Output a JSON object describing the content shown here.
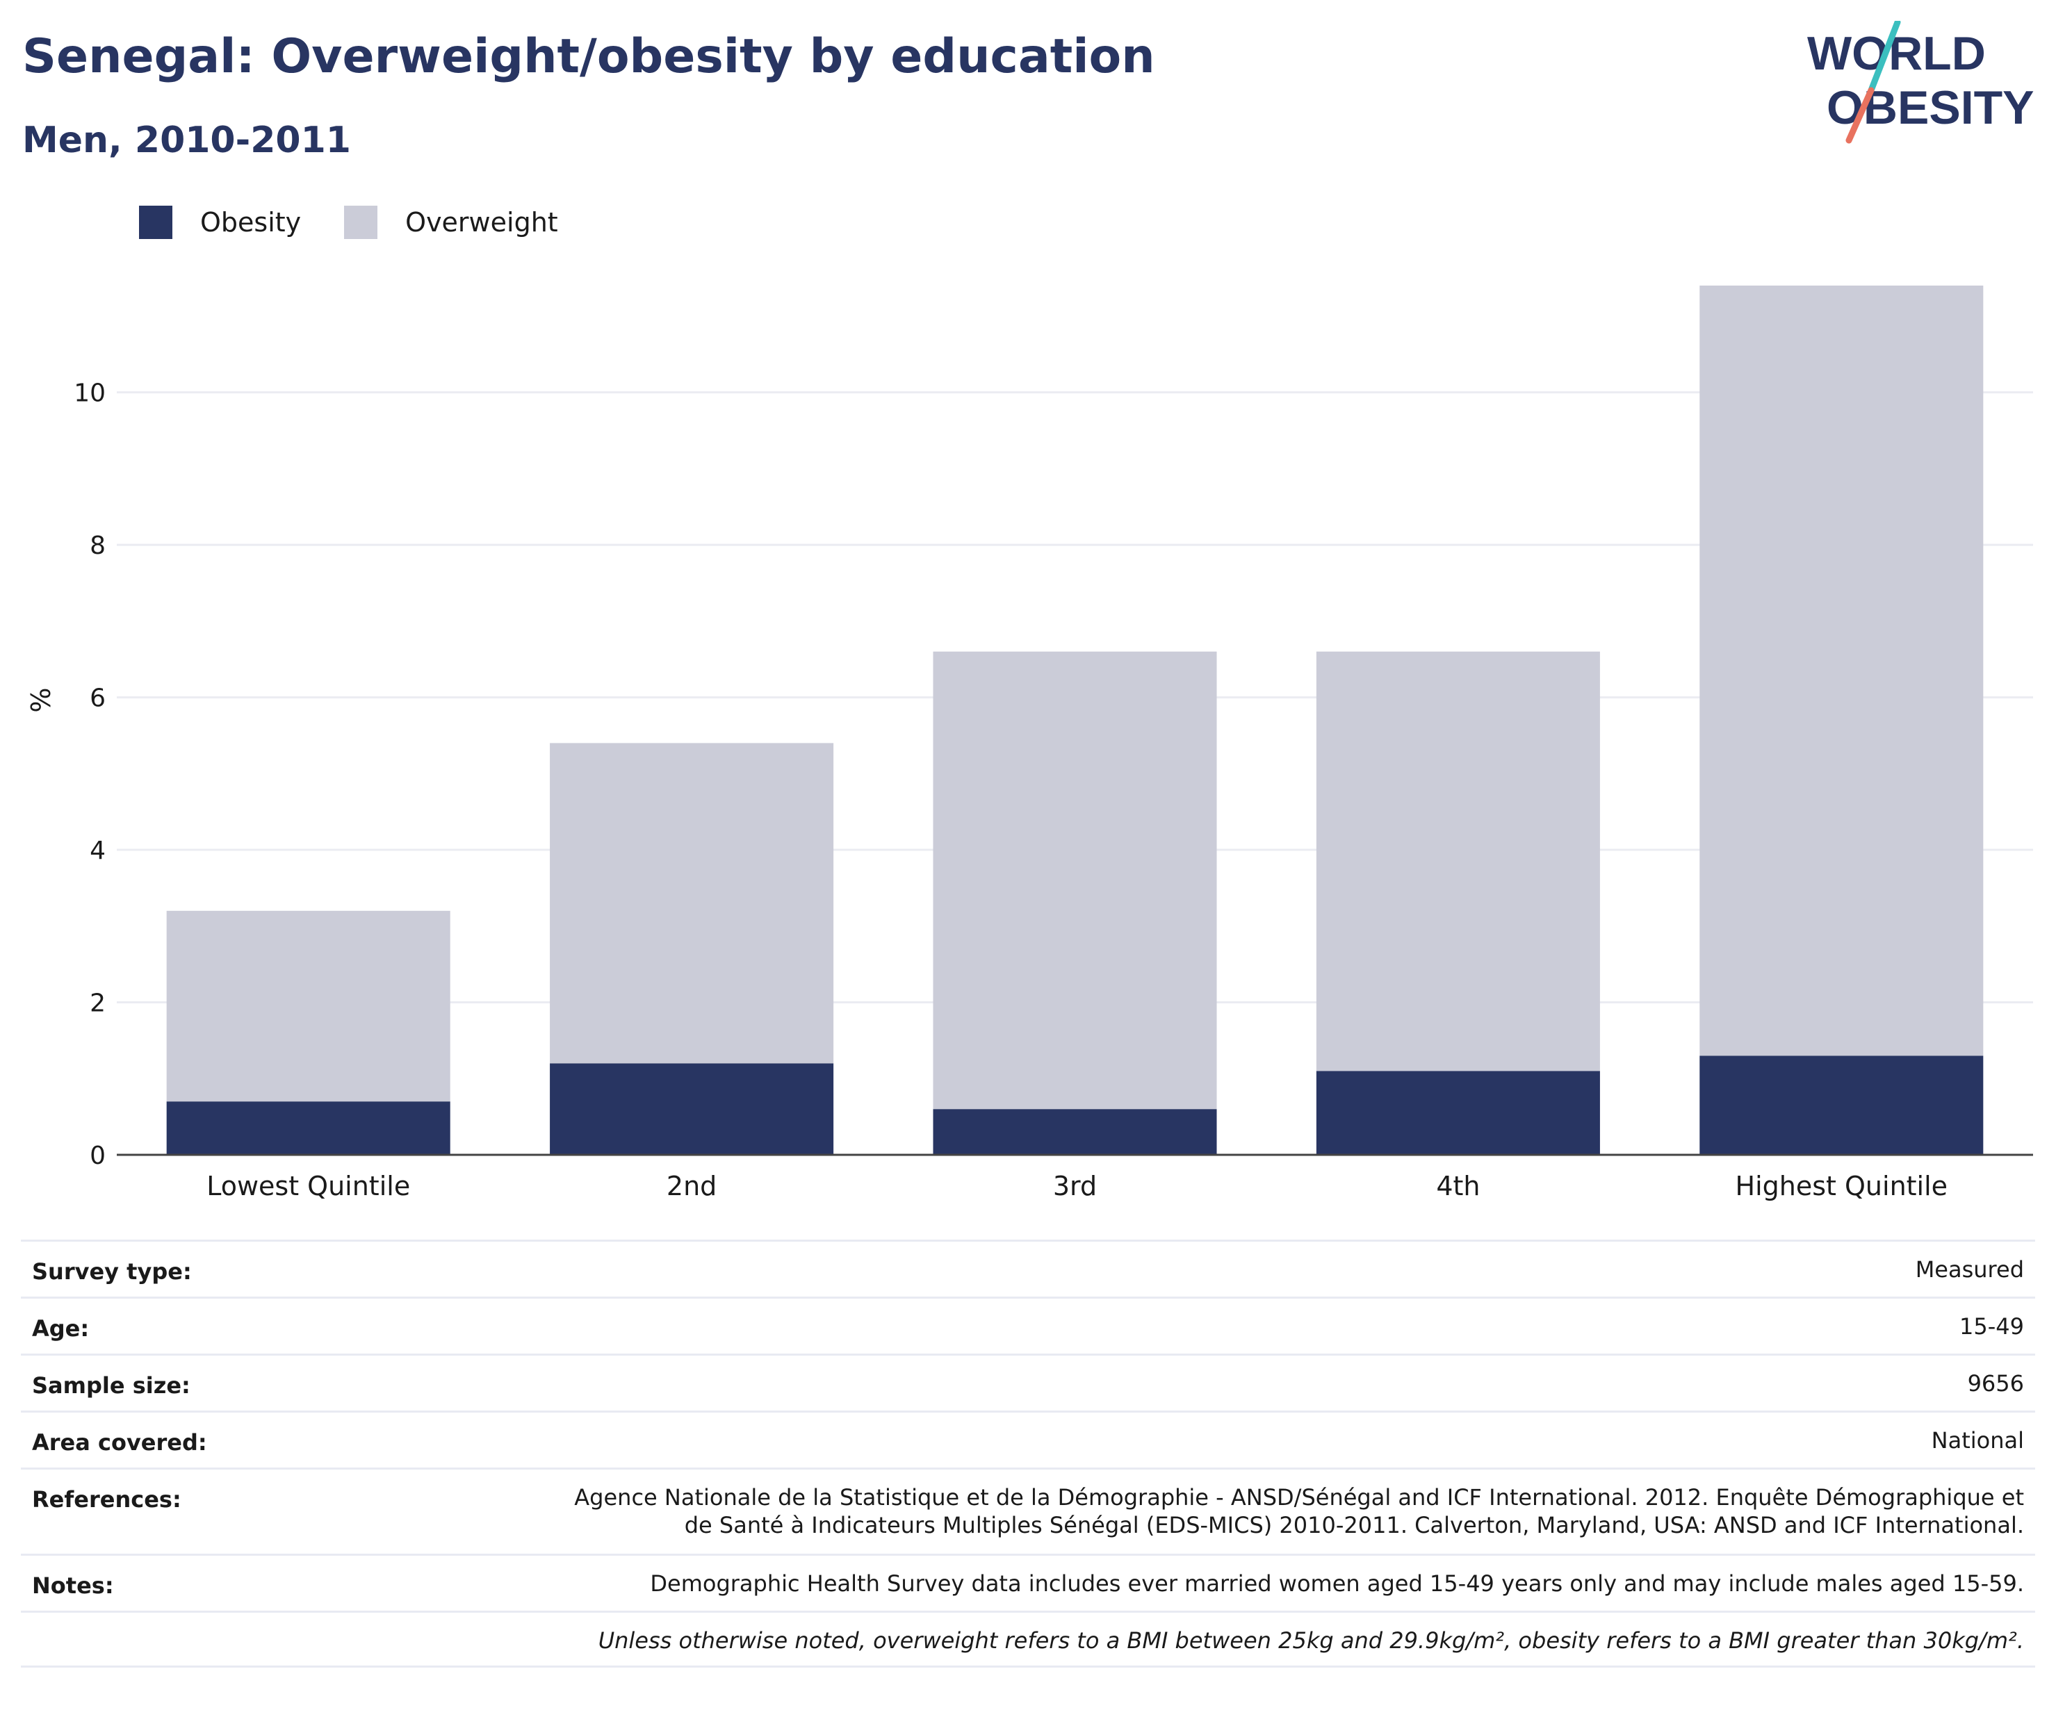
{
  "header": {
    "title": "Senegal: Overweight/obesity by education",
    "subtitle": "Men, 2010-2011",
    "logo_line1": "WORLD",
    "logo_line2": "OBESITY"
  },
  "colors": {
    "obesity": "#283562",
    "overweight": "#cbccd8",
    "title": "#283562",
    "logo_slash_top": "#3bbfbf",
    "logo_slash_bottom": "#e8725f"
  },
  "legend": [
    {
      "label": "Obesity",
      "color": "#283562"
    },
    {
      "label": "Overweight",
      "color": "#cbccd8"
    }
  ],
  "chart_data": {
    "type": "bar",
    "stacked": true,
    "categories": [
      "Lowest Quintile",
      "2nd",
      "3rd",
      "4th",
      "Highest Quintile"
    ],
    "series": [
      {
        "name": "Obesity",
        "values": [
          0.7,
          1.2,
          0.6,
          1.1,
          1.3
        ]
      },
      {
        "name": "Overweight",
        "values": [
          2.5,
          4.2,
          6.0,
          5.5,
          10.1
        ]
      }
    ],
    "ylabel": "%",
    "yticks": [
      0,
      2,
      4,
      6,
      8,
      10
    ],
    "ylim": [
      0,
      11.5
    ],
    "grid": true
  },
  "meta": [
    {
      "key": "Survey type:",
      "value": "Measured"
    },
    {
      "key": "Age:",
      "value": "15-49"
    },
    {
      "key": "Sample size:",
      "value": "9656"
    },
    {
      "key": "Area covered:",
      "value": "National"
    },
    {
      "key": "References:",
      "value": "Agence Nationale de la Statistique et de la Démographie - ANSD/Sénégal and ICF International. 2012. Enquête Démographique et de Santé à Indicateurs Multiples Sénégal (EDS-MICS) 2010-2011. Calverton, Maryland, USA: ANSD and ICF International."
    },
    {
      "key": "Notes:",
      "value": "Demographic Health Survey data includes ever married women aged 15-49 years only and may include males aged 15-59."
    },
    {
      "key": "",
      "value": "Unless otherwise noted, overweight refers to a BMI between 25kg and 29.9kg/m², obesity refers to a BMI greater than 30kg/m²."
    }
  ]
}
